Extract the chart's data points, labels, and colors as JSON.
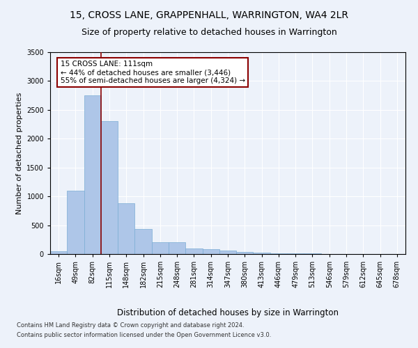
{
  "title": "15, CROSS LANE, GRAPPENHALL, WARRINGTON, WA4 2LR",
  "subtitle": "Size of property relative to detached houses in Warrington",
  "xlabel": "Distribution of detached houses by size in Warrington",
  "ylabel": "Number of detached properties",
  "categories": [
    "16sqm",
    "49sqm",
    "82sqm",
    "115sqm",
    "148sqm",
    "182sqm",
    "215sqm",
    "248sqm",
    "281sqm",
    "314sqm",
    "347sqm",
    "380sqm",
    "413sqm",
    "446sqm",
    "479sqm",
    "513sqm",
    "546sqm",
    "579sqm",
    "612sqm",
    "645sqm",
    "678sqm"
  ],
  "values": [
    50,
    1100,
    2750,
    2300,
    880,
    430,
    205,
    200,
    100,
    80,
    55,
    35,
    25,
    15,
    10,
    8,
    5,
    4,
    3,
    2,
    2
  ],
  "bar_color": "#aec6e8",
  "bar_edge_color": "#7aadd4",
  "vline_x_index": 2.5,
  "vline_color": "#8b0000",
  "ylim": [
    0,
    3500
  ],
  "yticks": [
    0,
    500,
    1000,
    1500,
    2000,
    2500,
    3000,
    3500
  ],
  "annotation_text": "15 CROSS LANE: 111sqm\n← 44% of detached houses are smaller (3,446)\n55% of semi-detached houses are larger (4,324) →",
  "annotation_box_color": "#ffffff",
  "annotation_box_edge_color": "#8b0000",
  "annotation_fontsize": 7.5,
  "footnote1": "Contains HM Land Registry data © Crown copyright and database right 2024.",
  "footnote2": "Contains public sector information licensed under the Open Government Licence v3.0.",
  "background_color": "#edf2fa",
  "plot_background_color": "#edf2fa",
  "grid_color": "#ffffff",
  "title_fontsize": 10,
  "subtitle_fontsize": 9,
  "xlabel_fontsize": 8.5,
  "ylabel_fontsize": 8,
  "tick_fontsize": 7
}
